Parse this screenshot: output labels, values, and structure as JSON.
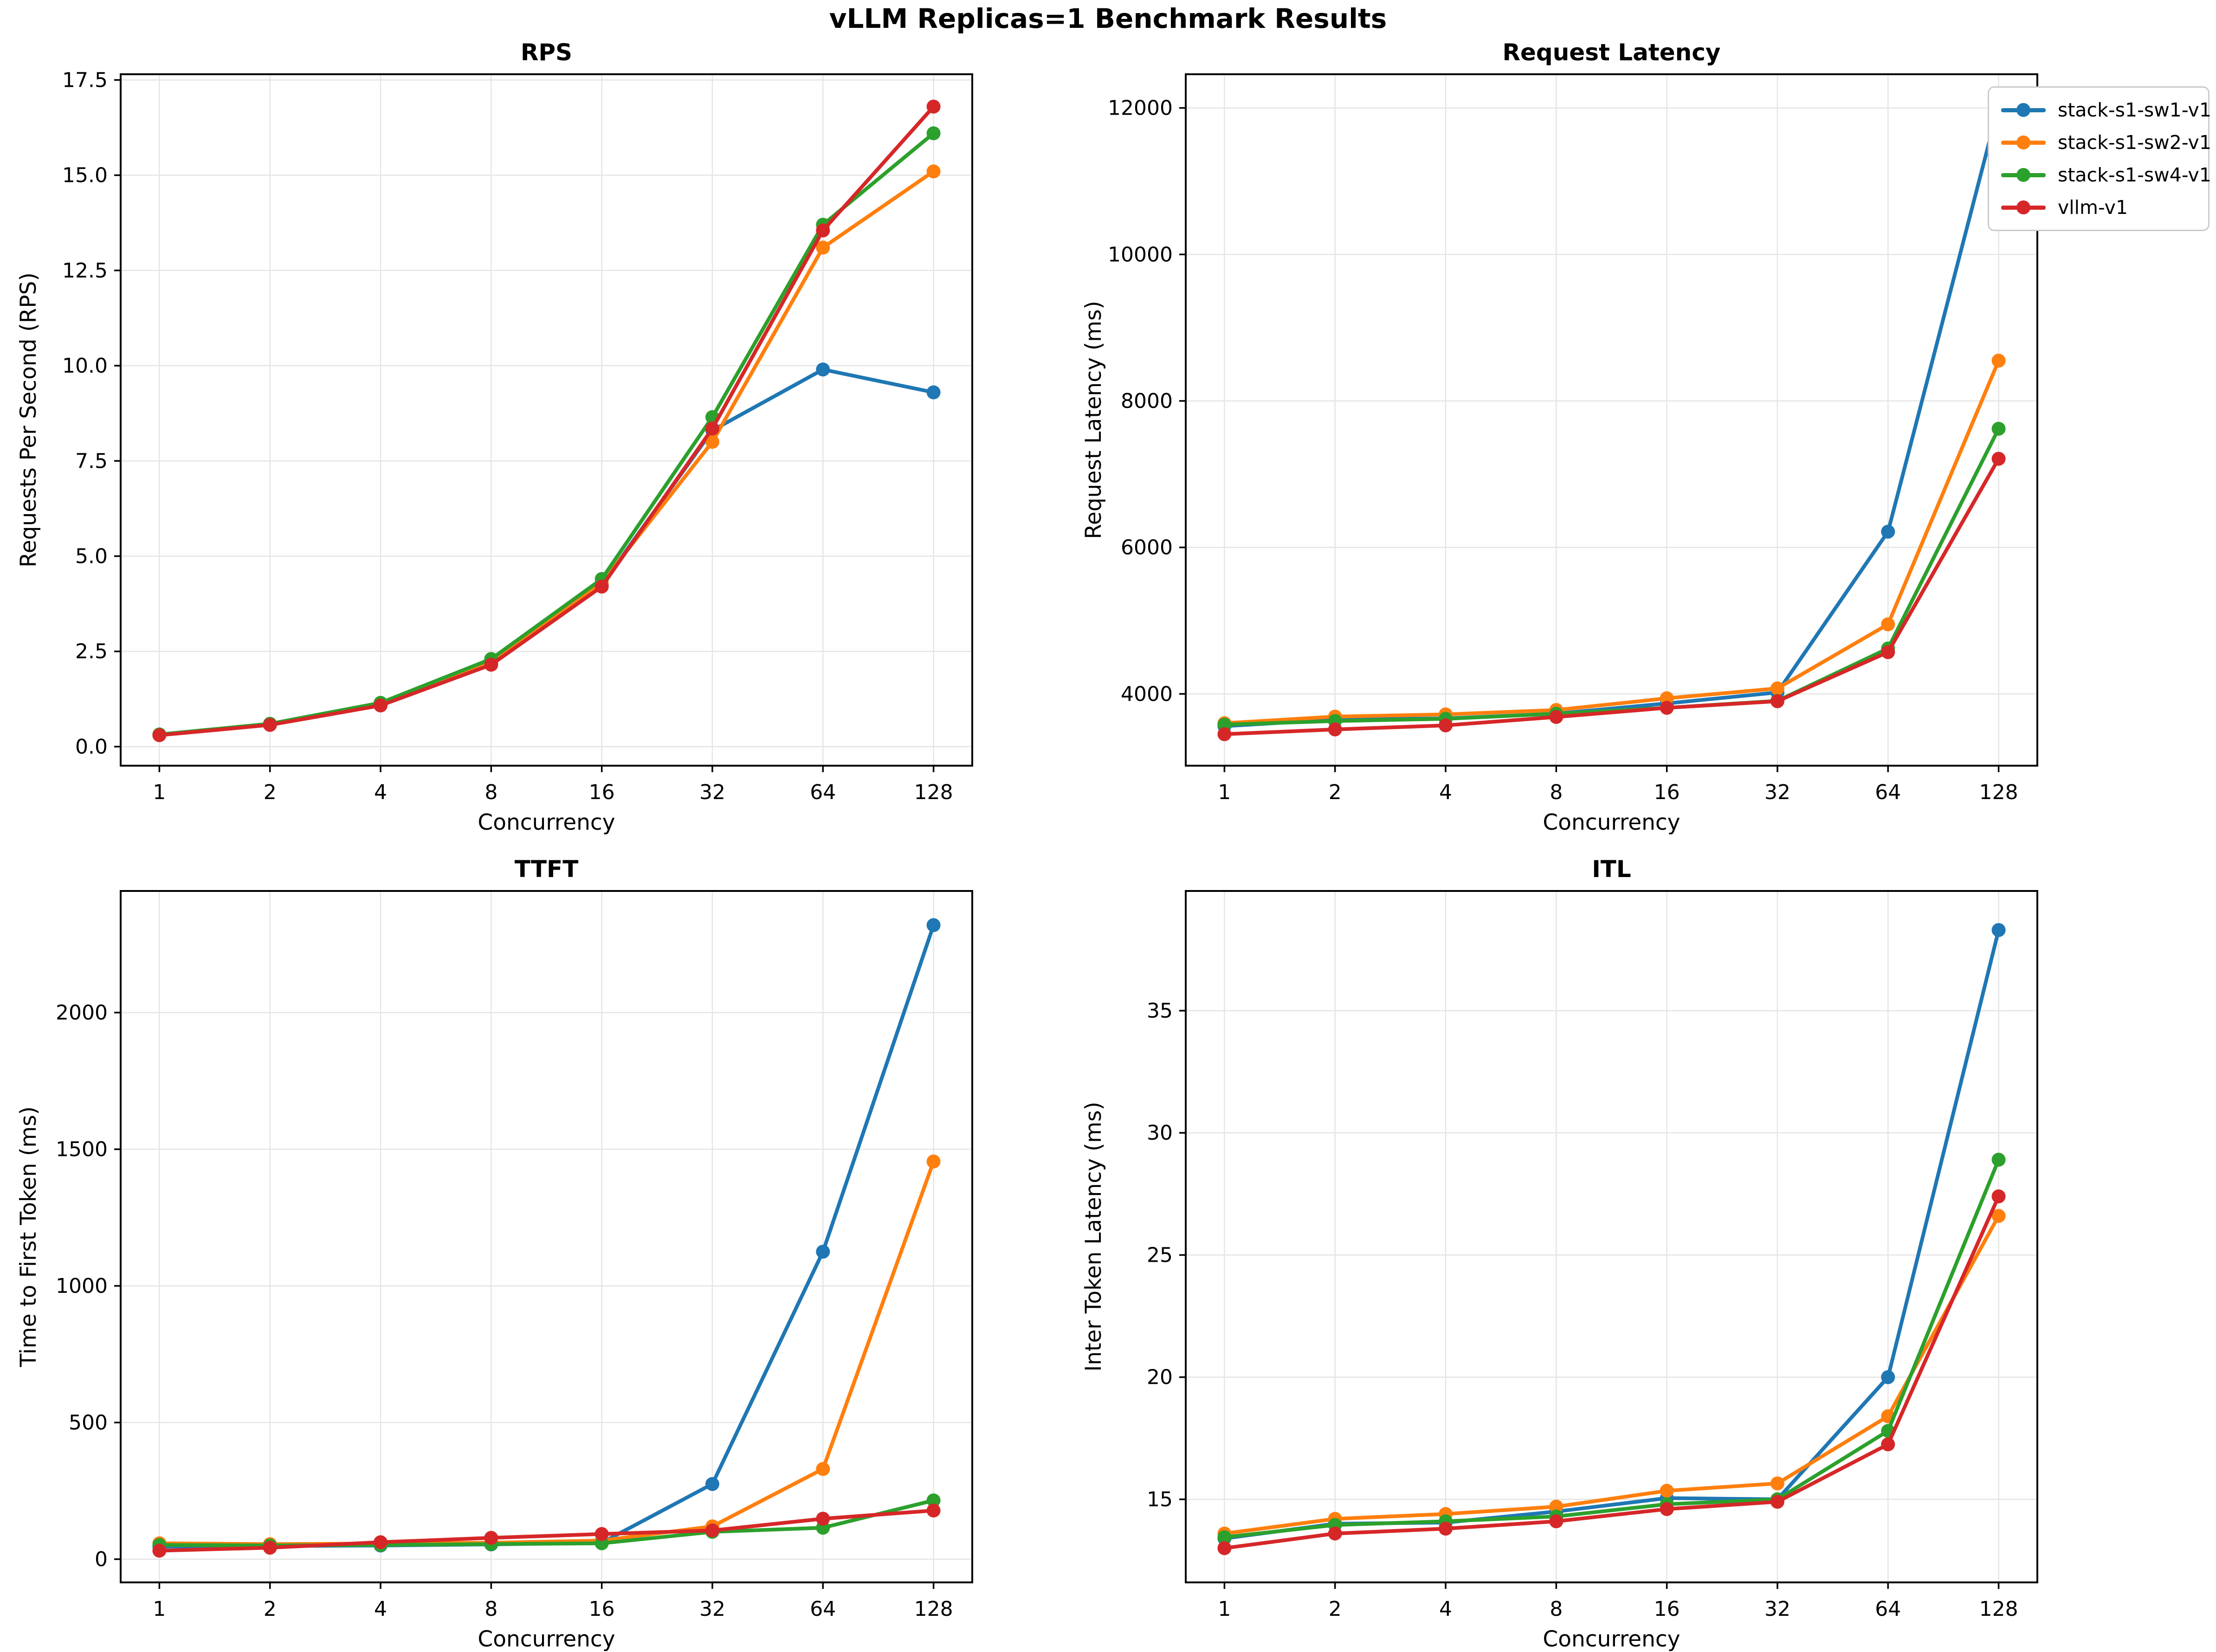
{
  "figure": {
    "title": "vLLM Replicas=1 Benchmark Results"
  },
  "legend": {
    "items": [
      {
        "label": "stack-s1-sw1-v1",
        "color": "#1f77b4"
      },
      {
        "label": "stack-s1-sw2-v1",
        "color": "#ff7f0e"
      },
      {
        "label": "stack-s1-sw4-v1",
        "color": "#2ca02c"
      },
      {
        "label": "vllm-v1",
        "color": "#d62728"
      }
    ]
  },
  "style": {
    "grid_color": "#e5e5e5",
    "spine_color": "#000000",
    "background": "#ffffff"
  },
  "chart_data": [
    {
      "key": "rps",
      "type": "line",
      "title": "RPS",
      "xlabel": "Concurrency",
      "ylabel": "Requests Per Second (RPS)",
      "categories": [
        "1",
        "2",
        "4",
        "8",
        "16",
        "32",
        "64",
        "128"
      ],
      "yticks": [
        0.0,
        2.5,
        5.0,
        7.5,
        10.0,
        12.5,
        15.0,
        17.5
      ],
      "ytick_decimals": 1,
      "ylim": [
        -0.5,
        17.65
      ],
      "grid": true,
      "legend_position": "outside-top-right",
      "series": [
        {
          "name": "stack-s1-sw1-v1",
          "color": "#1f77b4",
          "values": [
            0.31,
            0.58,
            1.1,
            2.18,
            4.25,
            8.3,
            9.9,
            9.3
          ]
        },
        {
          "name": "stack-s1-sw2-v1",
          "color": "#ff7f0e",
          "values": [
            0.31,
            0.58,
            1.1,
            2.2,
            4.3,
            8.0,
            13.1,
            15.1
          ]
        },
        {
          "name": "stack-s1-sw4-v1",
          "color": "#2ca02c",
          "values": [
            0.32,
            0.6,
            1.15,
            2.3,
            4.4,
            8.65,
            13.7,
            16.1
          ]
        },
        {
          "name": "vllm-v1",
          "color": "#d62728",
          "values": [
            0.3,
            0.57,
            1.08,
            2.15,
            4.2,
            8.35,
            13.55,
            16.8
          ]
        }
      ]
    },
    {
      "key": "latency",
      "type": "line",
      "title": "Request Latency",
      "xlabel": "Concurrency",
      "ylabel": "Request Latency (ms)",
      "categories": [
        "1",
        "2",
        "4",
        "8",
        "16",
        "32",
        "64",
        "128"
      ],
      "yticks": [
        4000,
        6000,
        8000,
        10000,
        12000
      ],
      "ytick_decimals": 0,
      "ylim": [
        3020,
        12460
      ],
      "grid": true,
      "series": [
        {
          "name": "stack-s1-sw1-v1",
          "color": "#1f77b4",
          "values": [
            3560,
            3650,
            3665,
            3730,
            3870,
            4020,
            6215,
            12030
          ]
        },
        {
          "name": "stack-s1-sw2-v1",
          "color": "#ff7f0e",
          "values": [
            3600,
            3690,
            3720,
            3780,
            3940,
            4075,
            4950,
            8550
          ]
        },
        {
          "name": "stack-s1-sw4-v1",
          "color": "#2ca02c",
          "values": [
            3580,
            3630,
            3660,
            3730,
            3810,
            3905,
            4620,
            7620
          ]
        },
        {
          "name": "vllm-v1",
          "color": "#d62728",
          "values": [
            3450,
            3515,
            3570,
            3685,
            3810,
            3900,
            4570,
            7210
          ]
        }
      ]
    },
    {
      "key": "ttft",
      "type": "line",
      "title": "TTFT",
      "xlabel": "Concurrency",
      "ylabel": "Time to First Token (ms)",
      "categories": [
        "1",
        "2",
        "4",
        "8",
        "16",
        "32",
        "64",
        "128"
      ],
      "yticks": [
        0,
        500,
        1000,
        1500,
        2000
      ],
      "ytick_decimals": 0,
      "ylim": [
        -85,
        2445
      ],
      "grid": true,
      "series": [
        {
          "name": "stack-s1-sw1-v1",
          "color": "#1f77b4",
          "values": [
            46,
            48,
            50,
            54,
            60,
            275,
            1125,
            2320
          ]
        },
        {
          "name": "stack-s1-sw2-v1",
          "color": "#ff7f0e",
          "values": [
            58,
            55,
            57,
            60,
            68,
            120,
            330,
            1455
          ]
        },
        {
          "name": "stack-s1-sw4-v1",
          "color": "#2ca02c",
          "values": [
            52,
            50,
            52,
            55,
            58,
            100,
            115,
            215
          ]
        },
        {
          "name": "vllm-v1",
          "color": "#d62728",
          "values": [
            31,
            42,
            62,
            78,
            92,
            105,
            148,
            178
          ]
        }
      ]
    },
    {
      "key": "itl",
      "type": "line",
      "title": "ITL",
      "xlabel": "Concurrency",
      "ylabel": "Inter Token Latency (ms)",
      "categories": [
        "1",
        "2",
        "4",
        "8",
        "16",
        "32",
        "64",
        "128"
      ],
      "yticks": [
        15,
        20,
        25,
        30,
        35
      ],
      "ytick_decimals": 0,
      "ylim": [
        11.6,
        39.9
      ],
      "grid": true,
      "series": [
        {
          "name": "stack-s1-sw1-v1",
          "color": "#1f77b4",
          "values": [
            13.4,
            14.0,
            14.05,
            14.5,
            15.05,
            15.0,
            20.0,
            38.3
          ]
        },
        {
          "name": "stack-s1-sw2-v1",
          "color": "#ff7f0e",
          "values": [
            13.6,
            14.2,
            14.4,
            14.7,
            15.35,
            15.65,
            18.4,
            26.6
          ]
        },
        {
          "name": "stack-s1-sw4-v1",
          "color": "#2ca02c",
          "values": [
            13.45,
            13.95,
            14.1,
            14.3,
            14.8,
            15.0,
            17.8,
            28.9
          ]
        },
        {
          "name": "vllm-v1",
          "color": "#d62728",
          "values": [
            13.0,
            13.6,
            13.8,
            14.1,
            14.6,
            14.9,
            17.25,
            27.4
          ]
        }
      ]
    }
  ]
}
